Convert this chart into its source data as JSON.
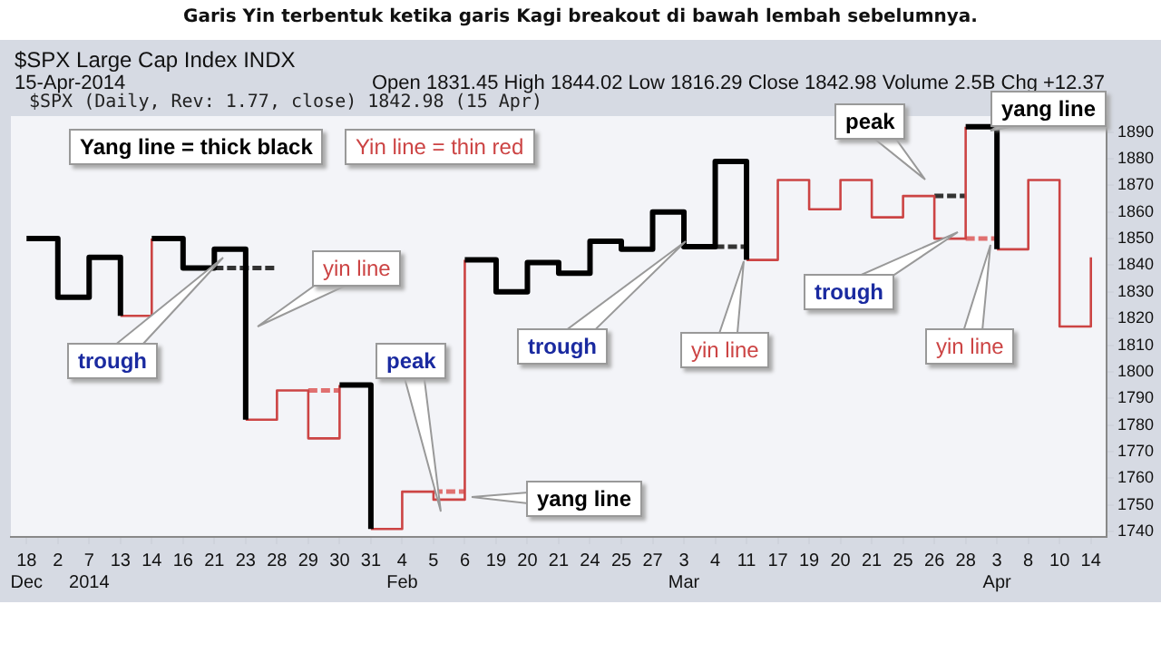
{
  "chart_data": {
    "type": "step",
    "title": "Garis Yin terbentuk ketika garis Kagi breakout di bawah lembah sebelumnya.",
    "subtitle": "$SPX Large Cap Index INDX",
    "categories": [
      "18\nDec",
      "2",
      "7\n2014",
      "13",
      "14",
      "16",
      "21",
      "23",
      "28",
      "29",
      "30",
      "31",
      "4\nFeb",
      "5",
      "6",
      "19",
      "20",
      "21",
      "24",
      "25",
      "27",
      "3\nMar",
      "4",
      "11",
      "17",
      "19",
      "20",
      "21",
      "25",
      "26",
      "28",
      "3\nApr",
      "8",
      "10",
      "14"
    ],
    "series": [
      {
        "color": "#000000",
        "values": [
          1850,
          1828,
          1843,
          1821,
          null,
          null,
          null,
          null,
          null,
          null,
          1795,
          1741,
          null,
          null,
          null,
          null,
          null,
          null,
          null,
          null,
          null,
          null,
          null,
          null,
          null,
          null,
          null,
          null,
          null,
          null,
          1892,
          1846,
          null,
          null,
          null
        ]
      },
      {
        "color": "#000000",
        "values": [
          null,
          null,
          null,
          null,
          1850,
          1839,
          1846,
          1782,
          null,
          null,
          null,
          null,
          null,
          null,
          1842,
          1830,
          1841,
          1837,
          1849,
          1846,
          1860,
          1847,
          1879,
          1842,
          null,
          null,
          null,
          null,
          null,
          null,
          null,
          null,
          null,
          null,
          null
        ]
      },
      {
        "color": "#cc4444",
        "values": [
          null,
          null,
          null,
          1821,
          1850,
          null,
          null,
          null,
          null,
          null,
          null,
          1741,
          1755,
          1752,
          1842,
          null,
          null,
          null,
          null,
          null,
          null,
          null,
          null,
          null,
          null,
          null,
          null,
          null,
          null,
          null,
          null,
          1846,
          1872,
          1817,
          1843
        ]
      },
      {
        "color": "#cc4444",
        "values": [
          null,
          null,
          null,
          null,
          null,
          null,
          null,
          1782,
          1793,
          1775,
          1795,
          null,
          null,
          null,
          null,
          null,
          null,
          null,
          null,
          null,
          null,
          null,
          null,
          1842,
          1872,
          1861,
          1872,
          1858,
          1866,
          1850,
          1892,
          null,
          null,
          null,
          null
        ]
      },
      {
        "color": "#333333",
        "line_style": "dashed",
        "values": [
          null,
          null,
          null,
          null,
          null,
          null,
          1839,
          1839,
          1839,
          null,
          null,
          null,
          null,
          null,
          null,
          null,
          null,
          null,
          null,
          null,
          null,
          null,
          1847,
          1847,
          null,
          null,
          null,
          null,
          null,
          1866,
          1866,
          null,
          null,
          null,
          null
        ]
      },
      {
        "color": "#e07070",
        "line_style": "dashed",
        "values": [
          null,
          null,
          null,
          null,
          null,
          null,
          null,
          null,
          null,
          1793,
          1793,
          null,
          null,
          1755,
          1755,
          null,
          null,
          null,
          null,
          null,
          null,
          null,
          null,
          null,
          null,
          null,
          null,
          null,
          null,
          null,
          1850,
          1850,
          null,
          null,
          null
        ]
      }
    ],
    "ylim": [
      1738,
      1896
    ],
    "yticks": [
      1740,
      1750,
      1760,
      1770,
      1780,
      1790,
      1800,
      1810,
      1820,
      1830,
      1840,
      1850,
      1860,
      1870,
      1880,
      1890
    ],
    "grid": false,
    "legend": false,
    "marker": "none",
    "annotations": [
      "15-Apr-2014",
      "Open 1831.45 High 1844.02 Low 1816.29 Close 1842.98 Volume 2.5B Chg +12.37",
      "$SPX (Daily, Rev: 1.77, close) 1842.98 (15 Apr)",
      "Yang line = thick black",
      "Yin line = thin red",
      "trough",
      "yin line",
      "peak",
      "yang line",
      "trough",
      "yin line",
      "trough",
      "peak",
      "yin line",
      "yang line"
    ]
  }
}
